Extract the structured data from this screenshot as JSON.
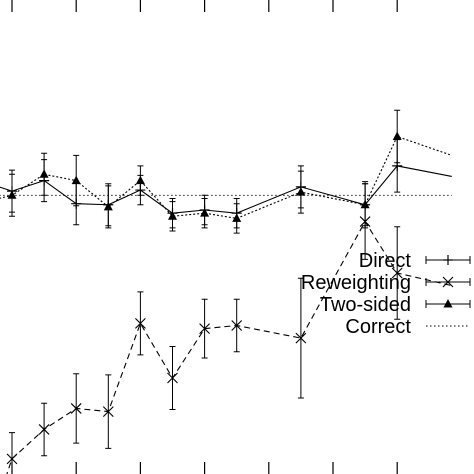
{
  "chart_data": {
    "type": "line",
    "title": "",
    "xlabel": "",
    "ylabel": "",
    "x": [
      0,
      1,
      2,
      3,
      4,
      5,
      6,
      7,
      8,
      9,
      10,
      11,
      12
    ],
    "x_ticks": [
      1,
      3,
      5,
      7,
      9,
      11,
      13
    ],
    "xlim": [
      0.6,
      14.7
    ],
    "ylim": [
      0,
      1
    ],
    "grid": false,
    "legend_position": "center-right",
    "series": [
      {
        "name": "Direct",
        "marker": "plus",
        "linestyle": "solid",
        "x": [
          0.6,
          1,
          2,
          3,
          4,
          5,
          6,
          7,
          8,
          10,
          12,
          13,
          14.7
        ],
        "y": [
          0.822,
          0.818,
          0.828,
          0.806,
          0.805,
          0.819,
          0.797,
          0.8,
          0.797,
          0.822,
          0.805,
          0.842,
          0.832
        ],
        "err": [
          0.0,
          0.02,
          0.02,
          0.02,
          0.02,
          0.014,
          0.014,
          0.014,
          0.014,
          0.02,
          0.022,
          0.025,
          0.0
        ]
      },
      {
        "name": "Reweighting",
        "marker": "x",
        "linestyle": "dashed",
        "x": [
          0.6,
          1,
          2,
          3,
          4,
          5,
          6,
          7,
          8,
          10,
          12,
          13,
          14.7
        ],
        "y": [
          0.527,
          0.563,
          0.591,
          0.611,
          0.608,
          0.692,
          0.64,
          0.687,
          0.69,
          0.678,
          0.789,
          0.74,
          0.728
        ],
        "err": [
          0.0,
          0.025,
          0.025,
          0.033,
          0.035,
          0.03,
          0.03,
          0.028,
          0.025,
          0.057,
          0.036,
          0.044,
          0.0
        ]
      },
      {
        "name": "Two-sided",
        "marker": "triangle",
        "linestyle": "dotted",
        "x": [
          0.6,
          1,
          2,
          3,
          4,
          5,
          6,
          7,
          8,
          10,
          12,
          13,
          14.7
        ],
        "y": [
          0.811,
          0.814,
          0.834,
          0.828,
          0.803,
          0.828,
          0.794,
          0.797,
          0.792,
          0.817,
          0.805,
          0.87,
          0.852
        ],
        "err": [
          0.0,
          0.02,
          0.02,
          0.024,
          0.02,
          0.014,
          0.014,
          0.014,
          0.014,
          0.02,
          0.02,
          0.025,
          0.0
        ]
      },
      {
        "name": "Correct",
        "marker": "none",
        "linestyle": "dotted-thin",
        "x": [
          0.6,
          14.7
        ],
        "y": [
          0.814,
          0.814
        ],
        "err": [
          0,
          0
        ]
      }
    ]
  }
}
